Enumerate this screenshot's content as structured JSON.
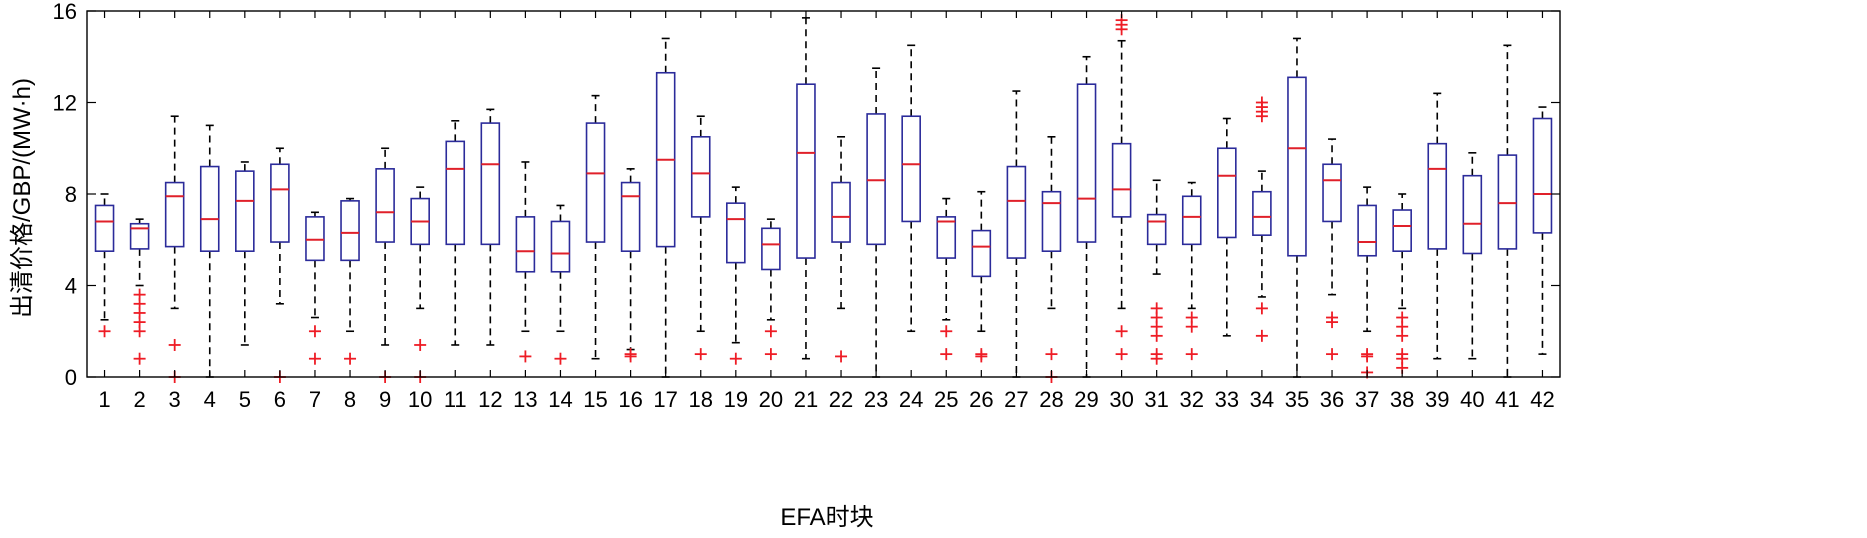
{
  "chart_data": {
    "type": "box",
    "xlabel": "EFA时块",
    "ylabel": "出清价格/GBP/(MW·h)",
    "ylim": [
      0,
      16
    ],
    "yticks": [
      0,
      4,
      8,
      12,
      16
    ],
    "categories": [
      "1",
      "2",
      "3",
      "4",
      "5",
      "6",
      "7",
      "8",
      "9",
      "10",
      "11",
      "12",
      "13",
      "14",
      "15",
      "16",
      "17",
      "18",
      "19",
      "20",
      "21",
      "22",
      "23",
      "24",
      "25",
      "26",
      "27",
      "28",
      "29",
      "30",
      "31",
      "32",
      "33",
      "34",
      "35",
      "36",
      "37",
      "38",
      "39",
      "40",
      "41",
      "42"
    ],
    "boxes": [
      {
        "whisker_low": 2.5,
        "q1": 5.5,
        "median": 6.8,
        "q3": 7.5,
        "whisker_high": 8.0,
        "outliers": [
          2.0
        ]
      },
      {
        "whisker_low": 4.0,
        "q1": 5.6,
        "median": 6.5,
        "q3": 6.7,
        "whisker_high": 6.9,
        "outliers": [
          3.6,
          3.2,
          2.8,
          2.4,
          2.0,
          0.8
        ]
      },
      {
        "whisker_low": 3.0,
        "q1": 5.7,
        "median": 7.9,
        "q3": 8.5,
        "whisker_high": 11.4,
        "outliers": [
          1.4,
          0.0
        ]
      },
      {
        "whisker_low": 0.0,
        "q1": 5.5,
        "median": 6.9,
        "q3": 9.2,
        "whisker_high": 11.0,
        "outliers": []
      },
      {
        "whisker_low": 1.4,
        "q1": 5.5,
        "median": 7.7,
        "q3": 9.0,
        "whisker_high": 9.4,
        "outliers": []
      },
      {
        "whisker_low": 3.2,
        "q1": 5.9,
        "median": 8.2,
        "q3": 9.3,
        "whisker_high": 10.0,
        "outliers": [
          0.0
        ]
      },
      {
        "whisker_low": 2.6,
        "q1": 5.1,
        "median": 6.0,
        "q3": 7.0,
        "whisker_high": 7.2,
        "outliers": [
          2.0,
          0.8
        ]
      },
      {
        "whisker_low": 2.0,
        "q1": 5.1,
        "median": 6.3,
        "q3": 7.7,
        "whisker_high": 7.8,
        "outliers": [
          0.8
        ]
      },
      {
        "whisker_low": 1.4,
        "q1": 5.9,
        "median": 7.2,
        "q3": 9.1,
        "whisker_high": 10.0,
        "outliers": [
          0.0
        ]
      },
      {
        "whisker_low": 3.0,
        "q1": 5.8,
        "median": 6.8,
        "q3": 7.8,
        "whisker_high": 8.3,
        "outliers": [
          1.4,
          0.0
        ]
      },
      {
        "whisker_low": 1.4,
        "q1": 5.8,
        "median": 9.1,
        "q3": 10.3,
        "whisker_high": 11.2,
        "outliers": []
      },
      {
        "whisker_low": 1.4,
        "q1": 5.8,
        "median": 9.3,
        "q3": 11.1,
        "whisker_high": 11.7,
        "outliers": []
      },
      {
        "whisker_low": 2.0,
        "q1": 4.6,
        "median": 5.5,
        "q3": 7.0,
        "whisker_high": 9.4,
        "outliers": [
          0.9
        ]
      },
      {
        "whisker_low": 2.0,
        "q1": 4.6,
        "median": 5.4,
        "q3": 6.8,
        "whisker_high": 7.5,
        "outliers": [
          0.8
        ]
      },
      {
        "whisker_low": 0.8,
        "q1": 5.9,
        "median": 8.9,
        "q3": 11.1,
        "whisker_high": 12.3,
        "outliers": []
      },
      {
        "whisker_low": 1.2,
        "q1": 5.5,
        "median": 7.9,
        "q3": 8.5,
        "whisker_high": 9.1,
        "outliers": [
          1.0,
          0.9
        ]
      },
      {
        "whisker_low": 0.0,
        "q1": 5.7,
        "median": 9.5,
        "q3": 13.3,
        "whisker_high": 14.8,
        "outliers": []
      },
      {
        "whisker_low": 2.0,
        "q1": 7.0,
        "median": 8.9,
        "q3": 10.5,
        "whisker_high": 11.4,
        "outliers": [
          1.0
        ]
      },
      {
        "whisker_low": 1.5,
        "q1": 5.0,
        "median": 6.9,
        "q3": 7.6,
        "whisker_high": 8.3,
        "outliers": [
          0.8
        ]
      },
      {
        "whisker_low": 2.5,
        "q1": 4.7,
        "median": 5.8,
        "q3": 6.5,
        "whisker_high": 6.9,
        "outliers": [
          2.0,
          1.0
        ]
      },
      {
        "whisker_low": 0.8,
        "q1": 5.2,
        "median": 9.8,
        "q3": 12.8,
        "whisker_high": 15.7,
        "outliers": []
      },
      {
        "whisker_low": 3.0,
        "q1": 5.9,
        "median": 7.0,
        "q3": 8.5,
        "whisker_high": 10.5,
        "outliers": [
          0.9
        ]
      },
      {
        "whisker_low": 0.0,
        "q1": 5.8,
        "median": 8.6,
        "q3": 11.5,
        "whisker_high": 13.5,
        "outliers": []
      },
      {
        "whisker_low": 2.0,
        "q1": 6.8,
        "median": 9.3,
        "q3": 11.4,
        "whisker_high": 14.5,
        "outliers": []
      },
      {
        "whisker_low": 2.5,
        "q1": 5.2,
        "median": 6.8,
        "q3": 7.0,
        "whisker_high": 7.8,
        "outliers": [
          2.0,
          1.0
        ]
      },
      {
        "whisker_low": 2.0,
        "q1": 4.4,
        "median": 5.7,
        "q3": 6.4,
        "whisker_high": 8.1,
        "outliers": [
          1.0,
          0.9
        ]
      },
      {
        "whisker_low": 0.0,
        "q1": 5.2,
        "median": 7.7,
        "q3": 9.2,
        "whisker_high": 12.5,
        "outliers": []
      },
      {
        "whisker_low": 3.0,
        "q1": 5.5,
        "median": 7.6,
        "q3": 8.1,
        "whisker_high": 10.5,
        "outliers": [
          1.0,
          0.0
        ]
      },
      {
        "whisker_low": 0.0,
        "q1": 5.9,
        "median": 7.8,
        "q3": 12.8,
        "whisker_high": 14.0,
        "outliers": []
      },
      {
        "whisker_low": 3.0,
        "q1": 7.0,
        "median": 8.2,
        "q3": 10.2,
        "whisker_high": 14.7,
        "outliers": [
          15.6,
          15.4,
          15.2,
          2.0,
          1.0
        ]
      },
      {
        "whisker_low": 4.5,
        "q1": 5.8,
        "median": 6.8,
        "q3": 7.1,
        "whisker_high": 8.6,
        "outliers": [
          3.0,
          2.6,
          2.2,
          1.8,
          1.0,
          0.8
        ]
      },
      {
        "whisker_low": 3.0,
        "q1": 5.8,
        "median": 7.0,
        "q3": 7.9,
        "whisker_high": 8.5,
        "outliers": [
          2.6,
          2.2,
          1.0
        ]
      },
      {
        "whisker_low": 1.8,
        "q1": 6.1,
        "median": 8.8,
        "q3": 10.0,
        "whisker_high": 11.3,
        "outliers": []
      },
      {
        "whisker_low": 3.5,
        "q1": 6.2,
        "median": 7.0,
        "q3": 8.1,
        "whisker_high": 9.0,
        "outliers": [
          12.0,
          11.8,
          11.6,
          11.4,
          3.0,
          1.8
        ]
      },
      {
        "whisker_low": 0.0,
        "q1": 5.3,
        "median": 10.0,
        "q3": 13.1,
        "whisker_high": 14.8,
        "outliers": []
      },
      {
        "whisker_low": 3.6,
        "q1": 6.8,
        "median": 8.6,
        "q3": 9.3,
        "whisker_high": 10.4,
        "outliers": [
          2.6,
          2.4,
          1.0
        ]
      },
      {
        "whisker_low": 2.0,
        "q1": 5.3,
        "median": 5.9,
        "q3": 7.5,
        "whisker_high": 8.3,
        "outliers": [
          1.0,
          0.9,
          0.2
        ]
      },
      {
        "whisker_low": 3.0,
        "q1": 5.5,
        "median": 6.6,
        "q3": 7.3,
        "whisker_high": 8.0,
        "outliers": [
          2.6,
          2.2,
          1.8,
          1.0,
          0.8,
          0.4
        ]
      },
      {
        "whisker_low": 0.8,
        "q1": 5.6,
        "median": 9.1,
        "q3": 10.2,
        "whisker_high": 12.4,
        "outliers": []
      },
      {
        "whisker_low": 0.8,
        "q1": 5.4,
        "median": 6.7,
        "q3": 8.8,
        "whisker_high": 9.8,
        "outliers": []
      },
      {
        "whisker_low": 0.0,
        "q1": 5.6,
        "median": 7.6,
        "q3": 9.7,
        "whisker_high": 14.5,
        "outliers": []
      },
      {
        "whisker_low": 1.0,
        "q1": 6.3,
        "median": 8.0,
        "q3": 11.3,
        "whisker_high": 11.8,
        "outliers": []
      }
    ],
    "colors": {
      "box": "#2b2b9a",
      "median": "#e0202a",
      "whisker": "#000000",
      "outlier": "#ee1c25",
      "axis": "#000000"
    },
    "grid": false,
    "legend": "none"
  }
}
